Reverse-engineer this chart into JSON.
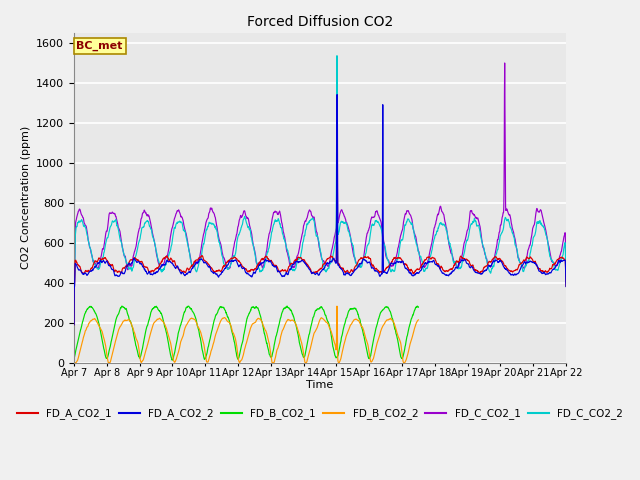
{
  "title": "Forced Diffusion CO2",
  "ylabel": "CO2 Concentration (ppm)",
  "xlabel": "Time",
  "ylim": [
    0,
    1650
  ],
  "yticks": [
    0,
    200,
    400,
    600,
    800,
    1000,
    1200,
    1400,
    1600
  ],
  "x_tick_labels": [
    "Apr 7",
    "Apr 8",
    "Apr 9",
    "Apr 10",
    "Apr 11",
    "Apr 12",
    "Apr 13",
    "Apr 14",
    "Apr 15",
    "Apr 16",
    "Apr 17",
    "Apr 18",
    "Apr 19",
    "Apr 20",
    "Apr 21",
    "Apr 22"
  ],
  "bg_color": "#e0e0e0",
  "plot_bg": "#e8e8e8",
  "grid_color": "#ffffff",
  "series_colors": {
    "FD_A_CO2_1": "#dd0000",
    "FD_A_CO2_2": "#0000dd",
    "FD_B_CO2_1": "#00dd00",
    "FD_B_CO2_2": "#ff9900",
    "FD_C_CO2_1": "#9900cc",
    "FD_C_CO2_2": "#00cccc"
  },
  "annotation_text": "BC_met",
  "annotation_bg": "#ffff99",
  "annotation_border": "#aa8800",
  "figsize": [
    6.4,
    4.8
  ],
  "dpi": 100
}
